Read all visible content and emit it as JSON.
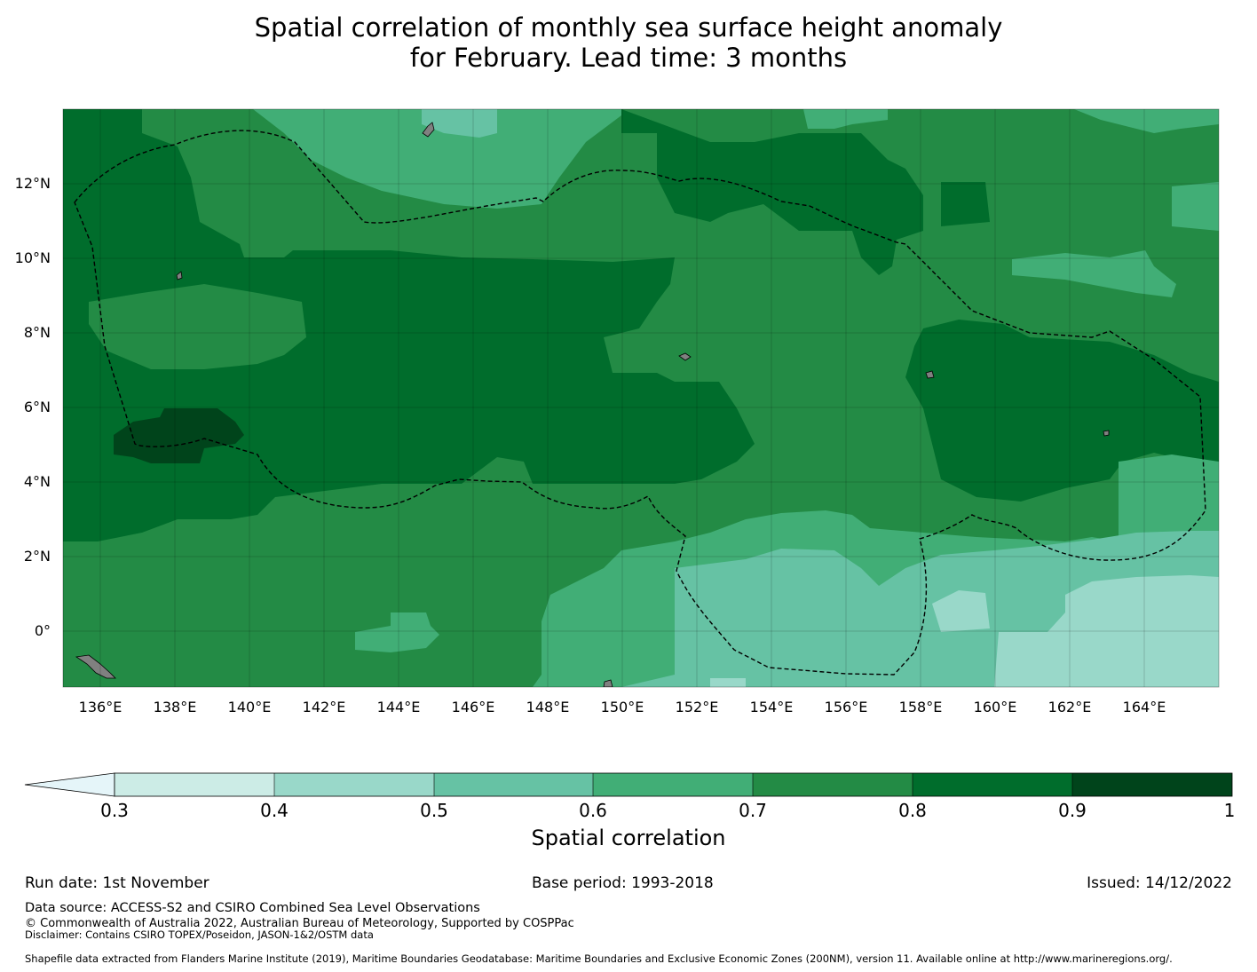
{
  "title": {
    "line1": "Spatial correlation of monthly sea surface height anomaly",
    "line2": "for February. Lead time: 3 months"
  },
  "map": {
    "lon_labels": [
      "136°E",
      "138°E",
      "140°E",
      "142°E",
      "144°E",
      "146°E",
      "148°E",
      "150°E",
      "152°E",
      "154°E",
      "156°E",
      "158°E",
      "160°E",
      "162°E",
      "164°E"
    ],
    "lat_labels": [
      "12°N",
      "10°N",
      "8°N",
      "6°N",
      "4°N",
      "2°N",
      "0°"
    ],
    "fill_colors": {
      "0.3-0.4": "#ccece6",
      "0.4-0.5": "#99d8c9",
      "0.5-0.6": "#66c2a4",
      "0.6-0.7": "#41ae76",
      "0.7-0.8": "#238b45",
      "0.8-0.9": "#006d2c",
      "0.9-1": "#00441b",
      "below-0.3": "#e5f5f9",
      "land": "#808080"
    },
    "boundary_style": "dashed black line (EEZ)"
  },
  "colorbar": {
    "tick_labels": [
      "0.3",
      "0.4",
      "0.5",
      "0.6",
      "0.7",
      "0.8",
      "0.9",
      "1"
    ],
    "title": "Spatial correlation"
  },
  "footer": {
    "run_date": "Run date: 1st November",
    "base_period": "Base period: 1993-2018",
    "issued": "Issued: 14/12/2022",
    "data_source": "Data source: ACCESS-S2 and CSIRO Combined Sea Level Observations",
    "copyright": "© Commonwealth of Australia 2022, Australian Bureau of Meteorology, Supported by COSPPac",
    "disclaimer": "Disclaimer: Contains CSIRO TOPEX/Poseidon, JASON-1&2/OSTM data",
    "shapefile": "Shapefile data extracted from Flanders Marine Institute (2019), Maritime Boundaries Geodatabase: Maritime Boundaries and Exclusive Economic Zones (200NM), version 11. Available online at http://www.marineregions.org/."
  }
}
